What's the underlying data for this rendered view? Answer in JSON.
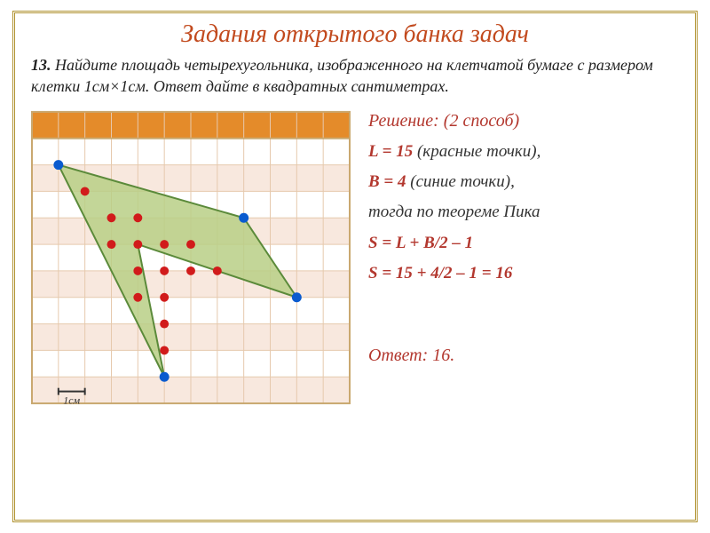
{
  "title": "Задания открытого банка задач",
  "problem": {
    "number": "13.",
    "text": "Найдите площадь четырехугольника, изображенного на клетчатой бумаге с размером клетки 1см×1см. Ответ дайте в квадратных сантиметрах."
  },
  "solution": {
    "heading": "Решение: (2 способ)",
    "line1a": "L = 15",
    "line1b": " (красные точки),",
    "line2a": "B = 4",
    "line2b": " (синие точки),",
    "line3": "тогда по теореме Пика",
    "line4": "S = L + B/2 – 1",
    "line5": "S = 15 + 4/2 – 1 = 16"
  },
  "answer": "Ответ: 16.",
  "grid": {
    "cols": 12,
    "rows": 11,
    "cell": 30,
    "header_fill": "#e48b2a",
    "row_even_fill": "#f8e8de",
    "row_odd_fill": "#ffffff",
    "grid_line": "#e6c9ad",
    "border": "#c9a86f",
    "polygon_fill": "#b8cf86",
    "polygon_stroke": "#5b8a3a",
    "polygon_points": [
      [
        1,
        2
      ],
      [
        8,
        4
      ],
      [
        10,
        7
      ],
      [
        4,
        5
      ],
      [
        5,
        10
      ]
    ],
    "blue_points": [
      [
        1,
        2
      ],
      [
        8,
        4
      ],
      [
        10,
        7
      ],
      [
        5,
        10
      ]
    ],
    "red_points": [
      [
        2,
        3
      ],
      [
        3,
        4
      ],
      [
        4,
        4
      ],
      [
        3,
        5
      ],
      [
        4,
        5
      ],
      [
        5,
        5
      ],
      [
        6,
        5
      ],
      [
        4,
        6
      ],
      [
        5,
        6
      ],
      [
        6,
        6
      ],
      [
        7,
        6
      ],
      [
        4,
        7
      ],
      [
        5,
        7
      ],
      [
        5,
        8
      ],
      [
        5,
        9
      ]
    ],
    "concave_point": [
      4,
      5
    ],
    "blue_color": "#0a5bcf",
    "red_color": "#d11b1b",
    "scale_label": "1см"
  }
}
